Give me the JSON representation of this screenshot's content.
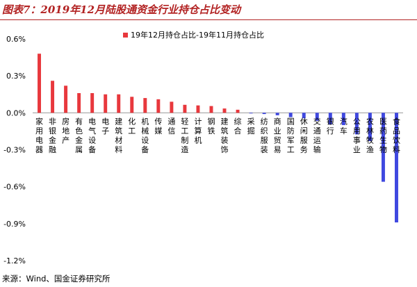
{
  "figure": {
    "title": "图表7：2019年12月陆股通资金行业持仓占比变动",
    "source": "来源：Wind、国金证券研究所"
  },
  "colors": {
    "positive": "#e8383d",
    "negative": "#3f48e0",
    "title": "#b22222"
  },
  "chart_data": {
    "type": "bar",
    "title": "图表7：2019年12月陆股通资金行业持仓占比变动",
    "legend": [
      "19年12月持仓占比-19年11月持仓占比"
    ],
    "legend_position": "top",
    "ylim": [
      -1.2,
      0.6
    ],
    "yticks": [
      0.6,
      0.3,
      0.0,
      -0.3,
      -0.6,
      -0.9,
      -1.2
    ],
    "ytick_labels": [
      "0.6%",
      "0.3%",
      "0.0%",
      "-0.3%",
      "-0.6%",
      "-0.9%",
      "-1.2%"
    ],
    "grid": false,
    "categories": [
      "家用电器",
      "非银金融",
      "房地产",
      "有色金属",
      "电气设备",
      "电子",
      "建筑材料",
      "化工",
      "机械设备",
      "传媒",
      "通信",
      "轻工制造",
      "计算机",
      "钢铁",
      "建筑装饰",
      "综合",
      "采掘",
      "纺织服装",
      "商业贸易",
      "国防军工",
      "休闲服务",
      "交通运输",
      "银行",
      "汽车",
      "公用事业",
      "农林牧渔",
      "医药生物",
      "食品饮料"
    ],
    "series": [
      {
        "name": "19年12月持仓占比-19年11月持仓占比",
        "values": [
          0.48,
          0.26,
          0.22,
          0.16,
          0.16,
          0.15,
          0.15,
          0.13,
          0.12,
          0.11,
          0.09,
          0.065,
          0.06,
          0.055,
          0.035,
          0.025,
          -0.005,
          -0.01,
          -0.02,
          -0.035,
          -0.045,
          -0.065,
          -0.095,
          -0.1,
          -0.175,
          -0.23,
          -0.56,
          -0.89
        ]
      }
    ]
  }
}
